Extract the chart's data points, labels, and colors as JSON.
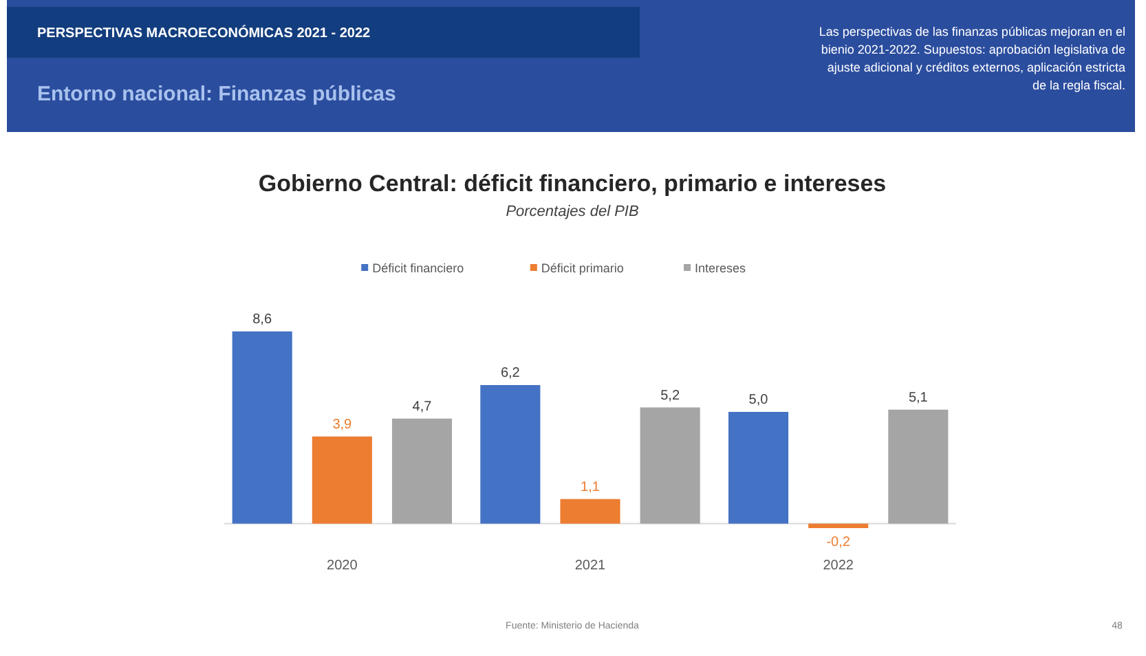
{
  "chart_data": {
    "type": "bar",
    "title": "Gobierno Central: déficit financiero, primario e intereses",
    "subtitle": "Porcentajes del PIB",
    "categories": [
      "2020",
      "2021",
      "2022"
    ],
    "series": [
      {
        "name": "Déficit financiero",
        "color": "#4472c4",
        "values": [
          8.6,
          6.2,
          5.0
        ],
        "value_labels": [
          "8,6",
          "6,2",
          "5,0"
        ]
      },
      {
        "name": "Déficit primario",
        "color": "#ed7d31",
        "values": [
          3.9,
          1.1,
          -0.2
        ],
        "value_labels": [
          "3,9",
          "1,1",
          "-0,2"
        ]
      },
      {
        "name": "Intereses",
        "color": "#a5a5a5",
        "values": [
          4.7,
          5.2,
          5.1
        ],
        "value_labels": [
          "4,7",
          "5,2",
          "5,1"
        ]
      }
    ],
    "legend": "top",
    "tick_labels": "x",
    "annotations": [
      "PERSPECTIVAS MACROECONÓMICAS 2021 - 2022",
      "Entorno nacional: Finanzas públicas",
      "Las perspectivas de las finanzas públicas mejoran en el bienio 2021-2022. Supuestos: aprobación legislativa de ajuste adicional y créditos externos, aplicación estricta de la regla fiscal.",
      "Fuente: Ministerio de Hacienda",
      "48"
    ]
  }
}
